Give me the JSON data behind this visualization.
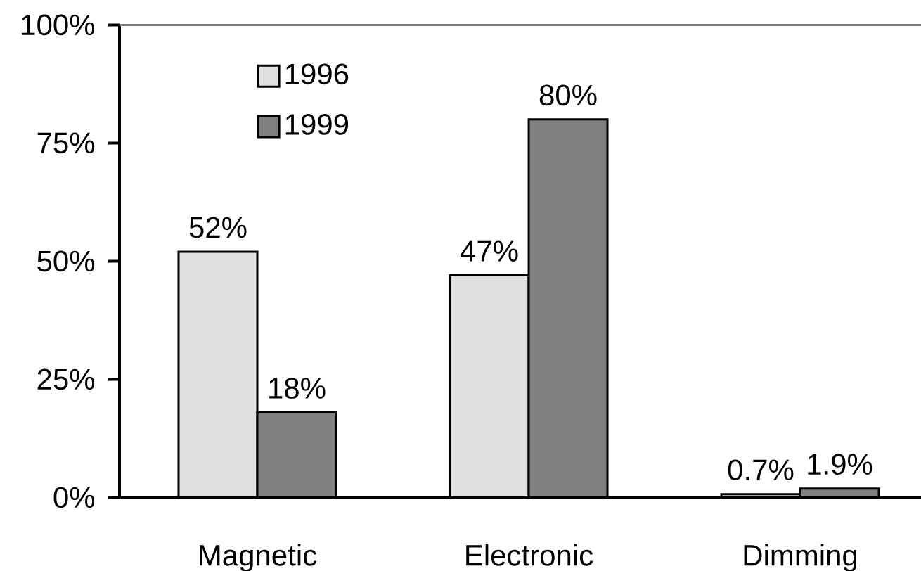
{
  "chart_data": {
    "type": "bar",
    "categories": [
      "Magnetic",
      "Electronic",
      "Dimming"
    ],
    "series": [
      {
        "name": "1996",
        "color": "#e0e0e0",
        "values": [
          52,
          47,
          0.7
        ],
        "value_labels": [
          "52%",
          "47%",
          "0.7%"
        ]
      },
      {
        "name": "1999",
        "color": "#808080",
        "values": [
          18,
          80,
          1.9
        ],
        "value_labels": [
          "18%",
          "80%",
          "1.9%"
        ]
      }
    ],
    "ylim": [
      0,
      100
    ],
    "yticks": [
      {
        "value": 0,
        "label": "0%"
      },
      {
        "value": 25,
        "label": "25%"
      },
      {
        "value": 50,
        "label": "50%"
      },
      {
        "value": 75,
        "label": "75%"
      },
      {
        "value": 100,
        "label": "100%"
      }
    ],
    "legend": "top left"
  }
}
